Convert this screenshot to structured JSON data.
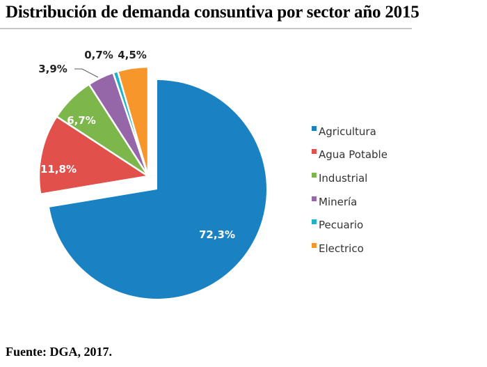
{
  "chart_data": {
    "type": "pie",
    "title": "Distribución de demanda consuntiva por sector año 2015",
    "source": "Fuente: DGA, 2017.",
    "legend_position": "right",
    "slices": [
      {
        "name": "Agricultura",
        "value": 72.3,
        "label": "72,3%",
        "color": "#1a82c2",
        "exploded": false,
        "label_color": "#ffffff"
      },
      {
        "name": "Agua Potable",
        "value": 11.8,
        "label": "11,8%",
        "color": "#e2504b",
        "exploded": true,
        "label_color": "#ffffff"
      },
      {
        "name": "Industrial",
        "value": 6.7,
        "label": "6,7%",
        "color": "#7db64a",
        "exploded": true,
        "label_color": "#ffffff"
      },
      {
        "name": "Minería",
        "value": 3.9,
        "label": "3,9%",
        "color": "#9566a8",
        "exploded": true,
        "label_color": "#222222"
      },
      {
        "name": "Pecuario",
        "value": 0.7,
        "label": "0,7%",
        "color": "#1fb2c8",
        "exploded": true,
        "label_color": "#222222"
      },
      {
        "name": "Electrico",
        "value": 4.5,
        "label": "4,5%",
        "color": "#f7962b",
        "exploded": true,
        "label_color": "#222222"
      }
    ]
  }
}
